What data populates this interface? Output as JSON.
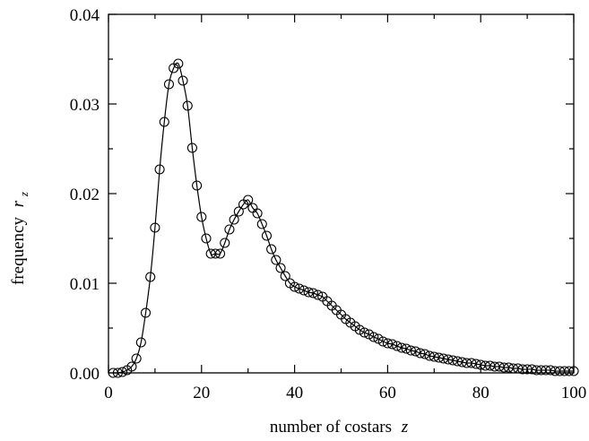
{
  "chart_data": {
    "type": "scatter",
    "xlabel_text": "number of costars",
    "xlabel_var": "z",
    "ylabel_text": "frequency",
    "ylabel_var": "r",
    "ylabel_sub": "z",
    "xlim": [
      0,
      100
    ],
    "ylim": [
      0,
      0.04
    ],
    "x_ticks": [
      0,
      20,
      40,
      60,
      80,
      100
    ],
    "x_tick_labels": [
      "0",
      "20",
      "40",
      "60",
      "80",
      "100"
    ],
    "y_ticks": [
      0,
      0.01,
      0.02,
      0.03,
      0.04
    ],
    "y_tick_labels": [
      "0.00",
      "0.01",
      "0.02",
      "0.03",
      "0.04"
    ],
    "grid": false,
    "series": [
      {
        "style": "circles-with-line",
        "x": [
          1,
          2,
          3,
          4,
          5,
          6,
          7,
          8,
          9,
          10,
          11,
          12,
          13,
          14,
          15,
          16,
          17,
          18,
          19,
          20,
          21,
          22,
          23,
          24,
          25,
          26,
          27,
          28,
          29,
          30,
          31,
          32,
          33,
          34,
          35,
          36,
          37,
          38,
          39,
          40,
          41,
          42,
          43,
          44,
          45,
          46,
          47,
          48,
          49,
          50,
          51,
          52,
          53,
          54,
          55,
          56,
          57,
          58,
          59,
          60,
          61,
          62,
          63,
          64,
          65,
          66,
          67,
          68,
          69,
          70,
          71,
          72,
          73,
          74,
          75,
          76,
          77,
          78,
          79,
          80,
          81,
          82,
          83,
          84,
          85,
          86,
          87,
          88,
          89,
          90,
          91,
          92,
          93,
          94,
          95,
          96,
          97,
          98,
          99,
          100
        ],
        "y": [
          0.0,
          0.0,
          0.0001,
          0.0003,
          0.0007,
          0.0016,
          0.0034,
          0.0067,
          0.0107,
          0.0162,
          0.0227,
          0.028,
          0.0322,
          0.034,
          0.0345,
          0.0326,
          0.0298,
          0.0251,
          0.0209,
          0.0174,
          0.015,
          0.0133,
          0.0133,
          0.0133,
          0.0145,
          0.016,
          0.0171,
          0.018,
          0.0188,
          0.0193,
          0.0184,
          0.0178,
          0.0166,
          0.0153,
          0.0138,
          0.0126,
          0.0117,
          0.0108,
          0.01,
          0.0096,
          0.0094,
          0.0092,
          0.009,
          0.0089,
          0.0087,
          0.0085,
          0.008,
          0.0075,
          0.007,
          0.0065,
          0.006,
          0.0056,
          0.0052,
          0.0048,
          0.0045,
          0.0043,
          0.004,
          0.0038,
          0.0035,
          0.0033,
          0.0032,
          0.003,
          0.0028,
          0.0027,
          0.0025,
          0.0024,
          0.0022,
          0.0021,
          0.0019,
          0.0018,
          0.0017,
          0.0016,
          0.0015,
          0.0014,
          0.0013,
          0.0012,
          0.0011,
          0.0011,
          0.001,
          0.0009,
          0.0008,
          0.0008,
          0.0007,
          0.0007,
          0.0006,
          0.0006,
          0.0005,
          0.0005,
          0.0004,
          0.0004,
          0.0004,
          0.0003,
          0.0003,
          0.0003,
          0.0003,
          0.0002,
          0.0002,
          0.0002,
          0.0002,
          0.0002
        ]
      }
    ]
  }
}
